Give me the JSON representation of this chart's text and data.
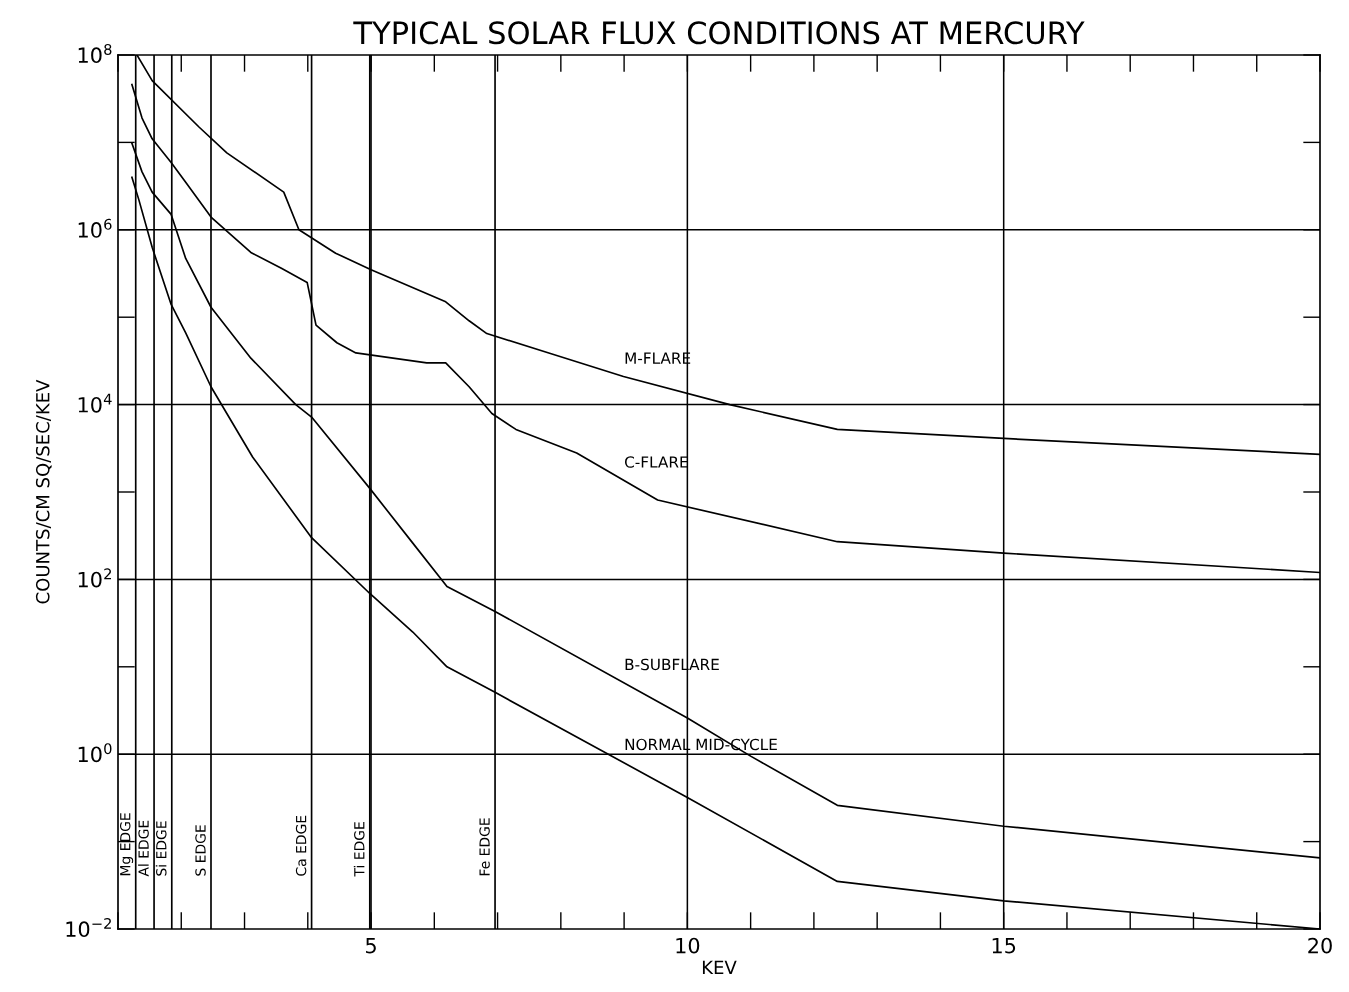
{
  "chart_data": {
    "type": "line",
    "title": "TYPICAL SOLAR FLUX CONDITIONS AT MERCURY",
    "xlabel": "KEV",
    "ylabel": "COUNTS/CM SQ/SEC/KEV",
    "log": "y",
    "grid": true,
    "legend": false,
    "marker": "none",
    "line_style": "solid",
    "xlim": [
      1,
      20
    ],
    "xticks": [
      5,
      10,
      15,
      20
    ],
    "ylim": [
      0.01,
      100000000
    ],
    "yticks": [
      {
        "value": 0.01,
        "label": "10$^{−2}$"
      },
      {
        "value": 1,
        "label": "10$^{0}$"
      },
      {
        "value": 100,
        "label": "10$^{2}$"
      },
      {
        "value": 10000,
        "label": "10$^{4}$"
      },
      {
        "value": 1000000,
        "label": "10$^{6}$"
      },
      {
        "value": 100000000,
        "label": "10$^{8}$"
      }
    ],
    "series": [
      {
        "name": "M-FLARE",
        "color": "#000000",
        "x": [
          1.3,
          1.54,
          2.28,
          2.72,
          3.62,
          3.86,
          4.44,
          5.0,
          6.18,
          6.55,
          6.83,
          7.81,
          8.99,
          10.67,
          12.37,
          15,
          20
        ],
        "values": [
          100000000,
          51000000,
          15000000,
          7600000,
          2700000,
          1000000,
          540000,
          350000,
          150000,
          91000,
          65000,
          39000,
          21000,
          10000,
          5200,
          4100,
          2700
        ]
      },
      {
        "name": "C-FLARE",
        "color": "#000000",
        "x": [
          1.22,
          1.38,
          1.54,
          1.84,
          2.07,
          2.47,
          3.1,
          3.59,
          3.99,
          4.13,
          4.46,
          4.76,
          5.88,
          6.18,
          6.55,
          6.91,
          7.29,
          8.25,
          9.53,
          12.37,
          15,
          20
        ],
        "values": [
          46000000,
          19000000,
          11000000,
          5900000,
          3500000,
          1400000,
          550000,
          360000,
          250000,
          81000,
          51000,
          39000,
          30000,
          30000,
          16000,
          7900,
          5200,
          2800,
          810,
          270,
          200,
          120
        ]
      },
      {
        "name": "B-SUBFLARE",
        "color": "#000000",
        "x": [
          1.22,
          1.38,
          1.54,
          1.84,
          2.07,
          2.47,
          3.1,
          3.81,
          4.06,
          4.98,
          5.66,
          6.2,
          6.96,
          10.0,
          11.0,
          12.37,
          15,
          20
        ],
        "values": [
          9800000,
          4600000,
          2700000,
          1500000,
          470000,
          130000,
          34000,
          10000,
          7200,
          1100,
          260,
          83,
          43,
          2.6,
          0.95,
          0.26,
          0.15,
          0.065
        ]
      },
      {
        "name": "NORMAL MID-CYCLE",
        "color": "#000000",
        "x": [
          1.22,
          1.33,
          1.54,
          1.84,
          2.07,
          2.47,
          3.13,
          4.06,
          4.98,
          5.66,
          6.2,
          6.96,
          10.0,
          12.37,
          15,
          20
        ],
        "values": [
          4000000,
          2200000,
          630000,
          140000,
          66000,
          16000,
          2500,
          300,
          69,
          25,
          10,
          5.1,
          0.32,
          0.035,
          0.021,
          0.01
        ]
      }
    ],
    "ref_lines": [
      {
        "axis": "x",
        "value": 1.28,
        "label": "Mg EDGE",
        "color": "#000000"
      },
      {
        "axis": "x",
        "value": 1.57,
        "label": "Al EDGE",
        "color": "#000000"
      },
      {
        "axis": "x",
        "value": 1.85,
        "label": "Si EDGE",
        "color": "#000000"
      },
      {
        "axis": "x",
        "value": 2.47,
        "label": "S EDGE",
        "color": "#000000"
      },
      {
        "axis": "x",
        "value": 4.06,
        "label": "Ca EDGE",
        "color": "#000000"
      },
      {
        "axis": "x",
        "value": 4.98,
        "label": "Ti EDGE",
        "color": "#000000"
      },
      {
        "axis": "x",
        "value": 6.96,
        "label": "Fe EDGE",
        "color": "#000000"
      }
    ]
  }
}
